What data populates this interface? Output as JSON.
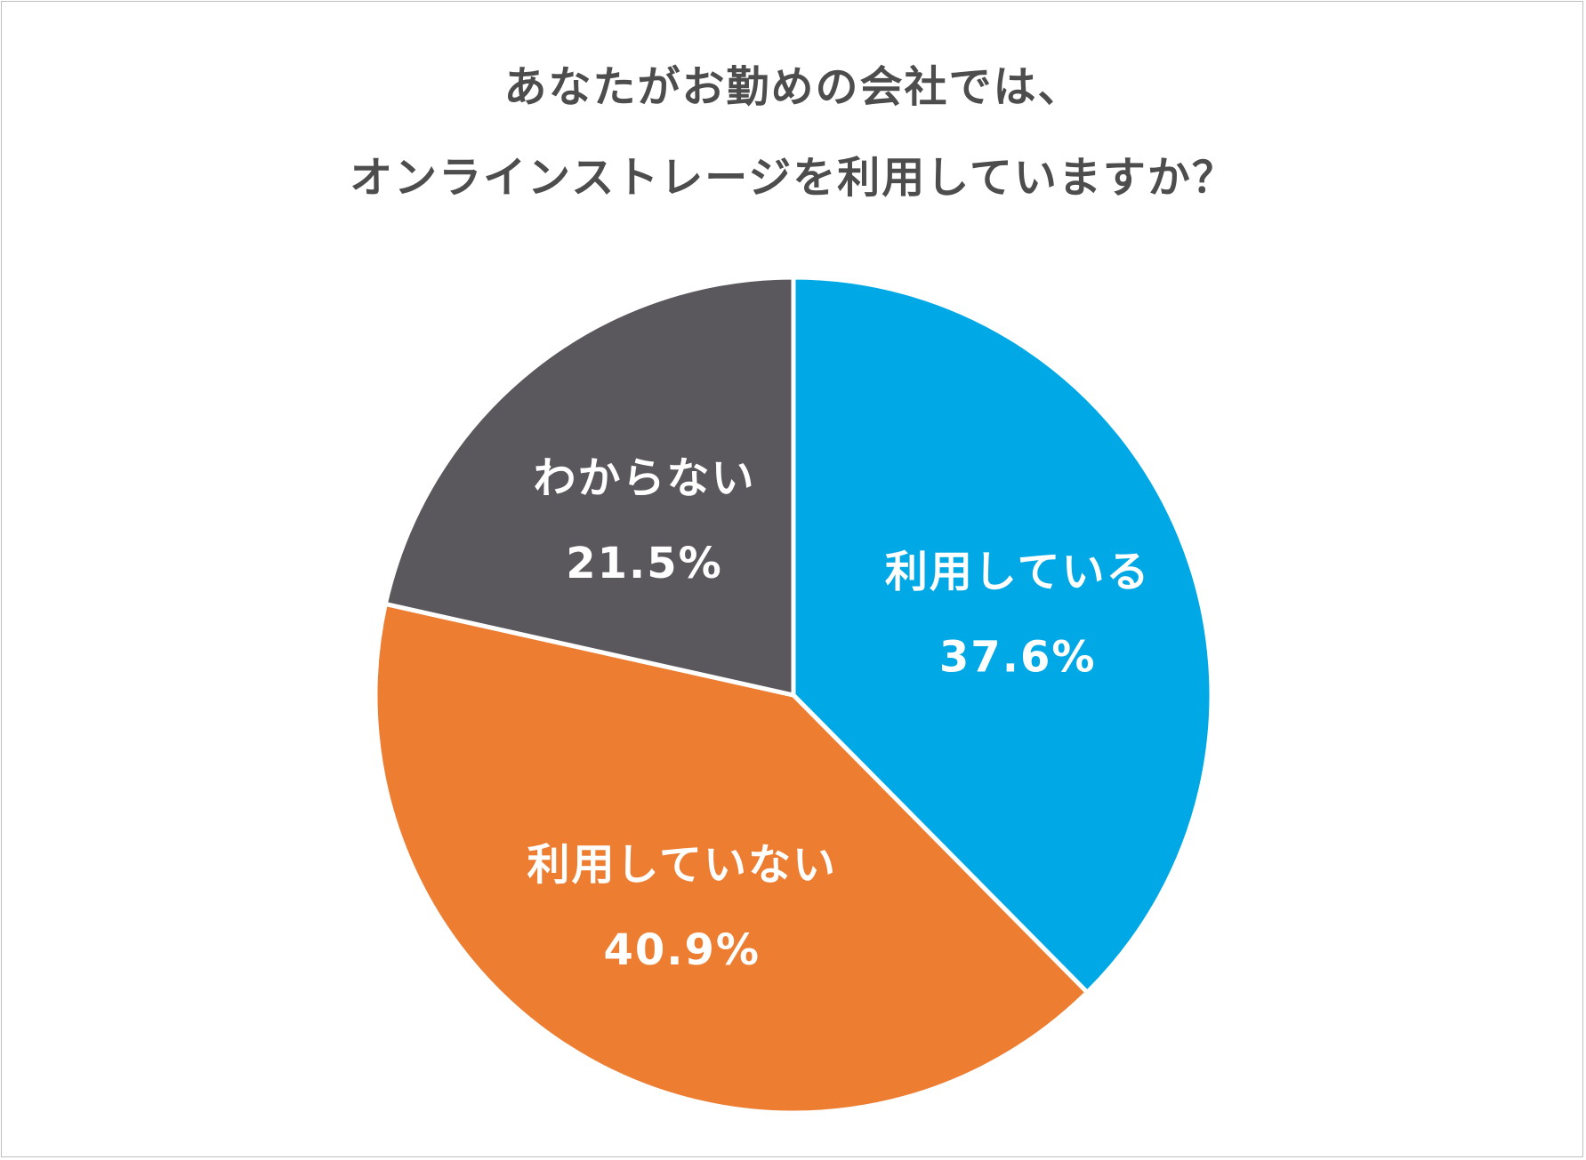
{
  "chart_data": {
    "type": "pie",
    "title_lines": [
      "あなたがお勤めの会社では、",
      "オンラインストレージを利用していますか？"
    ],
    "slices": [
      {
        "label": "利用している",
        "value": 37.6,
        "value_label": "37.6%",
        "color": "#00a9e6"
      },
      {
        "label": "利用していない",
        "value": 40.9,
        "value_label": "40.9%",
        "color": "#ed7d31"
      },
      {
        "label": "わからない",
        "value": 21.5,
        "value_label": "21.5%",
        "color": "#5a585d"
      }
    ],
    "start_angle": "12 o'clock",
    "direction": "clockwise",
    "legend": "none",
    "labels_position": "inside"
  }
}
